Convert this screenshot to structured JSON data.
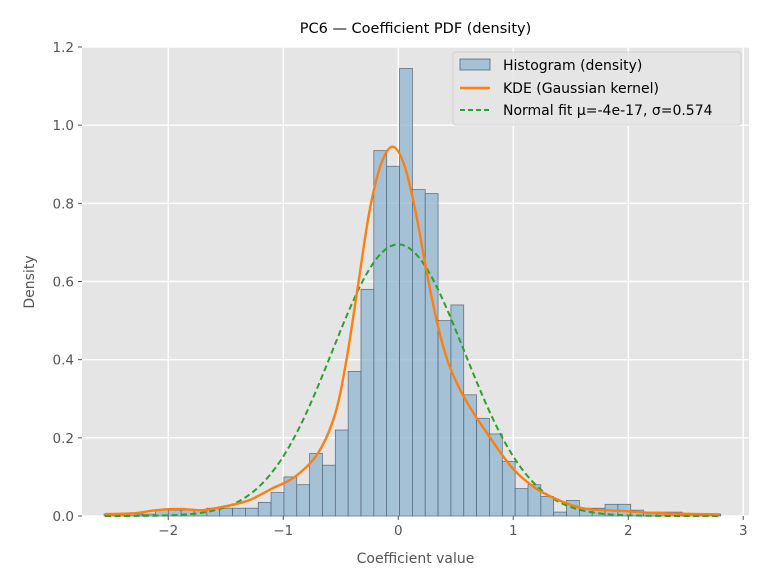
{
  "chart_data": {
    "type": "histogram",
    "title": "PC6 — Coefficient PDF (density)",
    "xlabel": "Coefficient value",
    "ylabel": "Density",
    "xlim": [
      -2.75,
      3.05
    ],
    "ylim": [
      0,
      1.2
    ],
    "x_ticks": [
      -2,
      -1,
      0,
      1,
      2,
      3
    ],
    "x_tick_labels": [
      "−2",
      "−1",
      "0",
      "1",
      "2",
      "3"
    ],
    "y_ticks": [
      0.0,
      0.2,
      0.4,
      0.6,
      0.8,
      1.0,
      1.2
    ],
    "y_tick_labels": [
      "0.0",
      "0.2",
      "0.4",
      "0.6",
      "0.8",
      "1.0",
      "1.2"
    ],
    "grid": true,
    "legend_position": "top-right",
    "histogram": {
      "name": "Histogram (density)",
      "color": "#8fb4d0",
      "bin_start": -2.558,
      "bin_width": 0.1117,
      "densities": [
        0.005,
        0.005,
        0.005,
        0.005,
        0.015,
        0.015,
        0.015,
        0.015,
        0.02,
        0.02,
        0.02,
        0.02,
        0.035,
        0.06,
        0.1,
        0.08,
        0.16,
        0.13,
        0.22,
        0.37,
        0.58,
        0.935,
        0.895,
        1.145,
        0.835,
        0.825,
        0.5,
        0.54,
        0.31,
        0.25,
        0.21,
        0.14,
        0.07,
        0.08,
        0.05,
        0.01,
        0.04,
        0.02,
        0.02,
        0.03,
        0.03,
        0.015,
        0.01,
        0.01,
        0.01,
        0.005,
        0.005,
        0.005
      ]
    },
    "kde": {
      "name": "KDE (Gaussian kernel)",
      "color": "#ff7f0e",
      "x": [
        -2.55,
        -2.3,
        -2.1,
        -1.9,
        -1.7,
        -1.5,
        -1.3,
        -1.1,
        -0.9,
        -0.7,
        -0.55,
        -0.45,
        -0.35,
        -0.25,
        -0.15,
        -0.05,
        0.05,
        0.15,
        0.25,
        0.35,
        0.45,
        0.6,
        0.8,
        1.0,
        1.2,
        1.4,
        1.6,
        1.8,
        2.0,
        2.2,
        2.4,
        2.6,
        2.8
      ],
      "y": [
        0.005,
        0.007,
        0.015,
        0.018,
        0.015,
        0.025,
        0.04,
        0.07,
        0.1,
        0.16,
        0.26,
        0.4,
        0.59,
        0.78,
        0.9,
        0.945,
        0.9,
        0.78,
        0.62,
        0.48,
        0.38,
        0.29,
        0.2,
        0.12,
        0.07,
        0.04,
        0.02,
        0.015,
        0.012,
        0.008,
        0.006,
        0.005,
        0.004
      ]
    },
    "normal_fit": {
      "name": "Normal fit μ=-4e-17, σ=0.574",
      "color": "#2ca02c",
      "mu": 0,
      "sigma": 0.574,
      "x_range": [
        -2.55,
        2.8
      ]
    }
  }
}
